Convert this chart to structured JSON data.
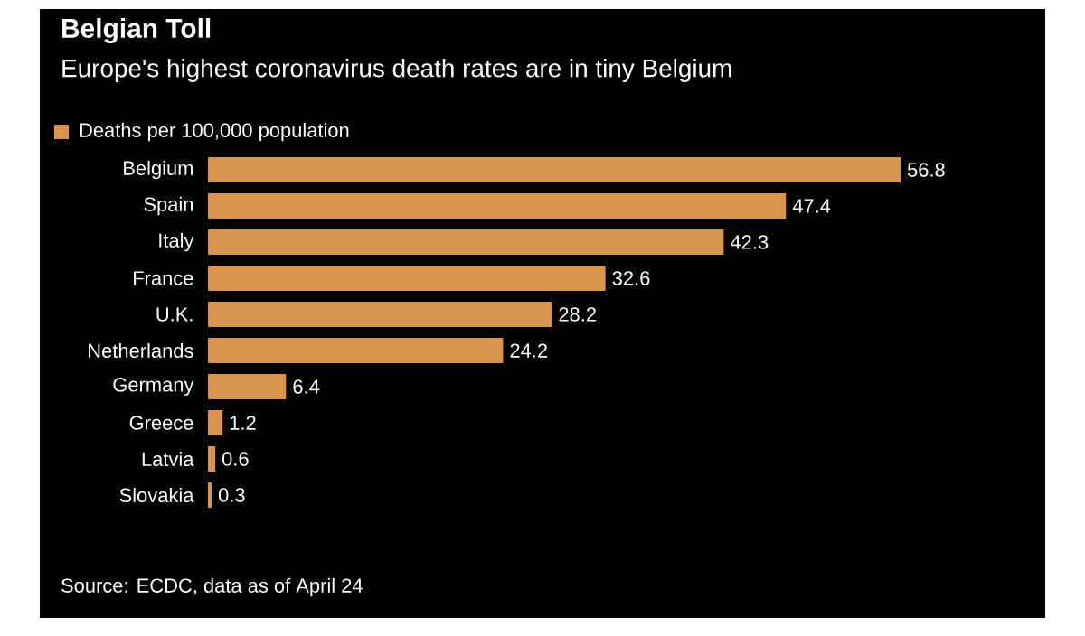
{
  "chart_data": {
    "type": "bar",
    "orientation": "horizontal",
    "title": "Belgian Toll",
    "subtitle": "Europe's highest coronavirus death rates are in tiny Belgium",
    "categories": [
      "Belgium",
      "Spain",
      "Italy",
      "France",
      "U.K.",
      "Netherlands",
      "Germany",
      "Greece",
      "Latvia",
      "Slovakia"
    ],
    "series": [
      {
        "name": "Deaths per 100,000 population",
        "color": "#d8944a",
        "values": [
          56.8,
          47.4,
          42.3,
          32.6,
          28.2,
          24.2,
          6.4,
          1.2,
          0.6,
          0.3
        ]
      }
    ],
    "data_labels": true,
    "legend": "top left",
    "annotations": [
      "Source: ECDC, data as of April 24"
    ]
  }
}
